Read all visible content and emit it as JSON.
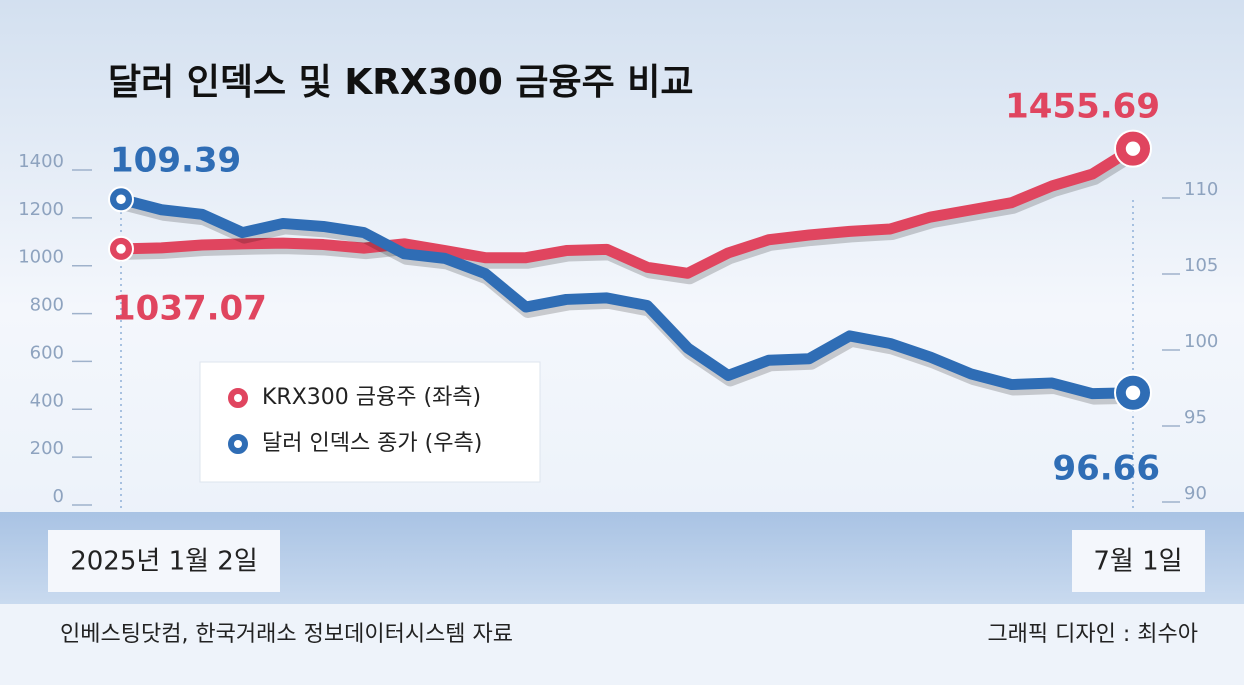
{
  "chart_data": {
    "type": "line",
    "title": "달러 인덱스 및 KRX300 금융주 비교",
    "categories": [
      "2025년 1월 2일",
      null,
      null,
      null,
      null,
      null,
      null,
      null,
      null,
      null,
      null,
      null,
      null,
      null,
      null,
      null,
      null,
      null,
      null,
      null,
      null,
      null,
      null,
      null,
      null,
      "7월 1일"
    ],
    "series": [
      {
        "name": "KRX300 금융주 (좌측)",
        "color": "#e0455f",
        "axis": "y",
        "values": [
          1037.07,
          1041,
          1053,
          1058,
          1061,
          1055,
          1040,
          1058,
          1030,
          1000,
          1000,
          1030,
          1035,
          960,
          935,
          1020,
          1075,
          1095,
          1110,
          1120,
          1170,
          1200,
          1230,
          1300,
          1350,
          1455.69
        ]
      },
      {
        "name": "달러 인덱스 종가 (우측)",
        "color": "#2f6db5",
        "axis": "y2",
        "values": [
          109.39,
          108.7,
          108.4,
          107.2,
          107.8,
          107.6,
          107.2,
          105.8,
          105.5,
          104.5,
          102.3,
          102.8,
          102.9,
          102.4,
          99.6,
          97.8,
          98.8,
          98.9,
          100.4,
          99.9,
          99.0,
          97.9,
          97.2,
          97.3,
          96.6,
          96.66
        ]
      }
    ],
    "ylim": [
      0,
      1400
    ],
    "yticks": [
      0,
      200,
      400,
      600,
      800,
      1000,
      1200,
      1400
    ],
    "y2lim": [
      90,
      110
    ],
    "y2ticks": [
      90,
      95,
      100,
      105,
      110
    ],
    "source": "인베스팅닷컴, 한국거래소 정보데이터시스템 자료",
    "credit": "그래픽 디자인 : 최수아"
  }
}
